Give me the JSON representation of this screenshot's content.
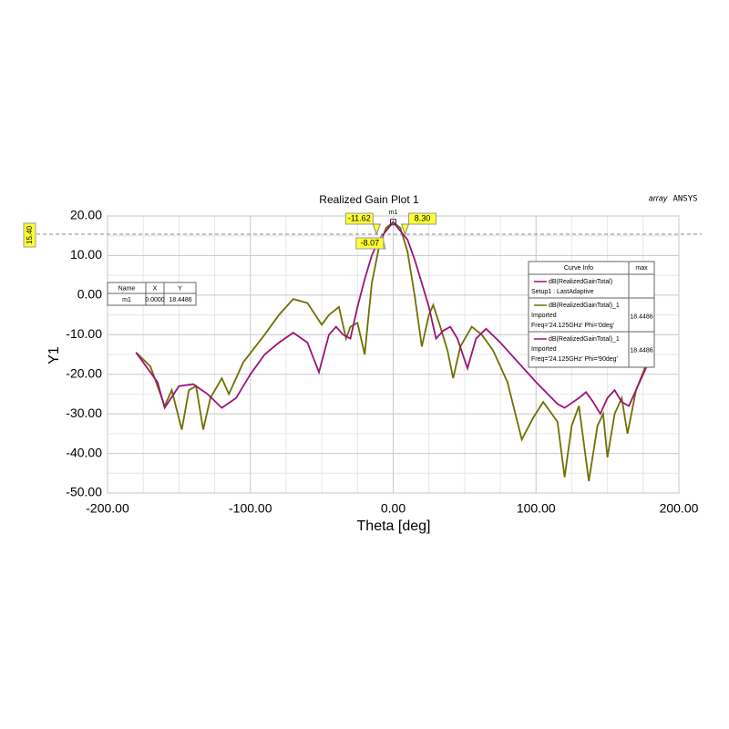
{
  "chart_data": {
    "type": "line",
    "title": "Realized Gain Plot 1",
    "project": "array",
    "brand": "ANSYS",
    "xlabel": "Theta [deg]",
    "ylabel": "Y1",
    "xlim": [
      -200,
      200
    ],
    "ylim": [
      -50,
      20
    ],
    "xticks": [
      {
        "value": -200,
        "label": "-200.00"
      },
      {
        "value": -100,
        "label": "-100.00"
      },
      {
        "value": 0,
        "label": "0.00"
      },
      {
        "value": 100,
        "label": "100.00"
      },
      {
        "value": 200,
        "label": "200.00"
      }
    ],
    "yticks": [
      {
        "value": -50,
        "label": "-50.00"
      },
      {
        "value": -40,
        "label": "-40.00"
      },
      {
        "value": -30,
        "label": "-30.00"
      },
      {
        "value": -20,
        "label": "-20.00"
      },
      {
        "value": -10,
        "label": "-10.00"
      },
      {
        "value": 0,
        "label": "0.00"
      },
      {
        "value": 10,
        "label": "10.00"
      },
      {
        "value": 20,
        "label": "20.00"
      }
    ],
    "grid": true,
    "series": [
      {
        "color": "#6e7000",
        "x": [
          -180,
          -170,
          -160,
          -155,
          -148,
          -143,
          -138,
          -133,
          -128,
          -120,
          -115,
          -105,
          -90,
          -80,
          -70,
          -60,
          -50,
          -45,
          -38,
          -33,
          -30,
          -25,
          -20,
          -15,
          -10,
          -5,
          0,
          5,
          10,
          15,
          20,
          25,
          28,
          33,
          38,
          42,
          47,
          55,
          62,
          70,
          80,
          90,
          98,
          105,
          115,
          120,
          125,
          130,
          137,
          143,
          147,
          150,
          155,
          160,
          164,
          170,
          180
        ],
        "values": [
          -14.5,
          -18,
          -28,
          -24,
          -34,
          -24,
          -23,
          -34,
          -26,
          -21,
          -25,
          -17,
          -10,
          -5,
          -1,
          -2,
          -7.5,
          -5,
          -3,
          -11,
          -8,
          -7,
          -15,
          3,
          12,
          17,
          18.4,
          17,
          11,
          0,
          -13,
          -5,
          -2.5,
          -8,
          -14,
          -21,
          -13,
          -8,
          -10,
          -14,
          -22,
          -36.5,
          -31,
          -27,
          -32,
          -46,
          -33,
          -28,
          -47,
          -33,
          -30,
          -41,
          -30,
          -26,
          -35,
          -24,
          -15
        ]
      },
      {
        "color": "#9c1478",
        "x": [
          -180,
          -165,
          -160,
          -150,
          -140,
          -130,
          -120,
          -110,
          -100,
          -90,
          -80,
          -70,
          -60,
          -52,
          -45,
          -40,
          -35,
          -30,
          -25,
          -20,
          -15,
          -10,
          0,
          10,
          15,
          20,
          25,
          30,
          35,
          40,
          45,
          52,
          58,
          65,
          75,
          85,
          100,
          115,
          120,
          130,
          135,
          140,
          145,
          150,
          155,
          160,
          165,
          170,
          180
        ],
        "values": [
          -14.5,
          -22,
          -28.5,
          -23,
          -22.5,
          -25,
          -28.5,
          -26,
          -20,
          -15,
          -12,
          -9.5,
          -12,
          -19.5,
          -10,
          -8,
          -10,
          -11,
          -3,
          4,
          10,
          14,
          18.4486,
          14,
          9,
          3,
          -3,
          -11,
          -9,
          -8,
          -11,
          -18.5,
          -11,
          -8.5,
          -12,
          -16,
          -22,
          -27.5,
          -28.5,
          -26,
          -24.5,
          -27,
          -30,
          -26,
          -24,
          -27,
          -28,
          -24,
          -16
        ]
      }
    ],
    "reference_line": {
      "value": 15.4,
      "label": "15.40"
    },
    "x_markers": [
      {
        "value": -11.62,
        "label": "-11.62"
      },
      {
        "value": 8.3,
        "label": "8.30"
      },
      {
        "value": -8.07,
        "label": "-8.07"
      }
    ],
    "marker_table": {
      "header": [
        "Name",
        "X",
        "Y"
      ],
      "rows": [
        [
          {
            "text": "m1"
          },
          {
            "value": 0,
            "label": "0.0000"
          },
          {
            "value": 18.4486,
            "label": "18.4486"
          }
        ]
      ]
    },
    "curve_info": {
      "header": [
        "Curve Info",
        "max"
      ],
      "rows": [
        {
          "color": "#9c1478",
          "lines": [
            "dB(RealizedGainTotal)",
            "Setup1 : LastAdaptive"
          ]
        },
        {
          "color": "#6e7000",
          "lines": [
            "dB(RealizedGainTotal)_1",
            "Imported",
            "Freq='24.125GHz' Phi='0deg'"
          ],
          "max": {
            "value": 18.4486,
            "label": "18.4486"
          }
        },
        {
          "color": "#9c1478",
          "lines": [
            "dB(RealizedGainTotal)_1",
            "Imported",
            "Freq='24.125GHz' Phi='90deg'"
          ],
          "max": {
            "value": 18.4486,
            "label": "18.4486"
          }
        }
      ]
    }
  }
}
